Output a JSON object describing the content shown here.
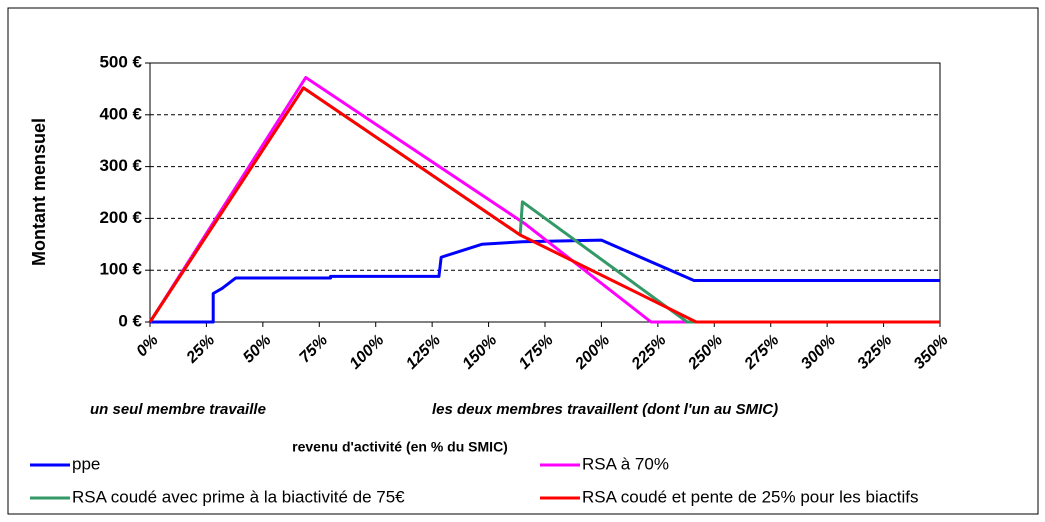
{
  "chart_data": {
    "type": "line",
    "y_label": "Montant mensuel",
    "x_label": "revenu d'activité (en % du SMIC)",
    "annotations": [
      "un seul membre travaille",
      "les deux membres travaillent (dont l'un au SMIC)"
    ],
    "xlim": [
      0,
      350
    ],
    "xticks": [
      {
        "value": 0,
        "label": "0%"
      },
      {
        "value": 25,
        "label": "25%"
      },
      {
        "value": 50,
        "label": "50%"
      },
      {
        "value": 75,
        "label": "75%"
      },
      {
        "value": 100,
        "label": "100%"
      },
      {
        "value": 125,
        "label": "125%"
      },
      {
        "value": 150,
        "label": "150%"
      },
      {
        "value": 175,
        "label": "175%"
      },
      {
        "value": 200,
        "label": "200%"
      },
      {
        "value": 225,
        "label": "225%"
      },
      {
        "value": 250,
        "label": "250%"
      },
      {
        "value": 275,
        "label": "275%"
      },
      {
        "value": 300,
        "label": "300%"
      },
      {
        "value": 325,
        "label": "325%"
      },
      {
        "value": 350,
        "label": "350%"
      }
    ],
    "ylim": [
      0,
      500
    ],
    "yticks": [
      {
        "value": 0,
        "label": "0 €"
      },
      {
        "value": 100,
        "label": "100 €"
      },
      {
        "value": 200,
        "label": "200 €"
      },
      {
        "value": 300,
        "label": "300 €"
      },
      {
        "value": 400,
        "label": "400 €"
      },
      {
        "value": 500,
        "label": "500 €"
      }
    ],
    "grid": true,
    "series": [
      {
        "name": "ppe",
        "color": "#0000ff",
        "x": [
          0,
          28,
          28,
          32,
          38,
          80,
          80,
          128,
          129,
          147,
          165,
          200,
          241,
          350
        ],
        "values": [
          0,
          0,
          55,
          65,
          85,
          85,
          88,
          88,
          125,
          150,
          155,
          158,
          80,
          80
        ]
      },
      {
        "name": "RSA à 70%",
        "color": "#ff00ff",
        "x": [
          0,
          69,
          166,
          222,
          350
        ],
        "values": [
          0,
          472,
          190,
          0,
          0
        ]
      },
      {
        "name": "RSA coudé avec prime à la biactivité de 75€",
        "color": "#339966",
        "x": [
          0,
          68,
          164,
          165,
          238,
          350
        ],
        "values": [
          0,
          452,
          168,
          232,
          0,
          0
        ]
      },
      {
        "name": "RSA coudé et pente de 25% pour les biactifs",
        "color": "#ff0000",
        "x": [
          0,
          68,
          164,
          242,
          350
        ],
        "values": [
          0,
          452,
          168,
          0,
          0
        ]
      }
    ]
  }
}
